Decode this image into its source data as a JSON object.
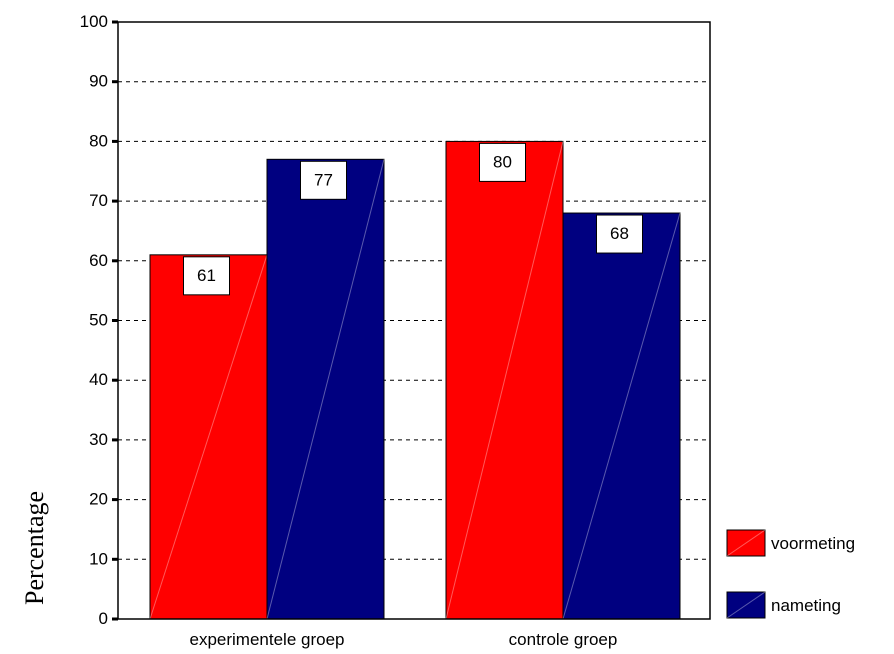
{
  "chart_data": {
    "type": "bar",
    "categories": [
      "experimentele groep",
      "controle groep"
    ],
    "series": [
      {
        "name": "voormeting",
        "values": [
          61,
          80
        ],
        "color": "#ff0000"
      },
      {
        "name": "nameting",
        "values": [
          77,
          68
        ],
        "color": "#000080"
      }
    ],
    "data_labels": [
      [
        "61",
        "80"
      ],
      [
        "77",
        "68"
      ]
    ],
    "ylabel": "Percentage",
    "xlabel": "",
    "ylim": [
      0,
      100
    ],
    "yticks": [
      0,
      10,
      20,
      30,
      40,
      50,
      60,
      70,
      80,
      90,
      100
    ],
    "grid": "horizontal dashed",
    "legend_position": "right"
  }
}
